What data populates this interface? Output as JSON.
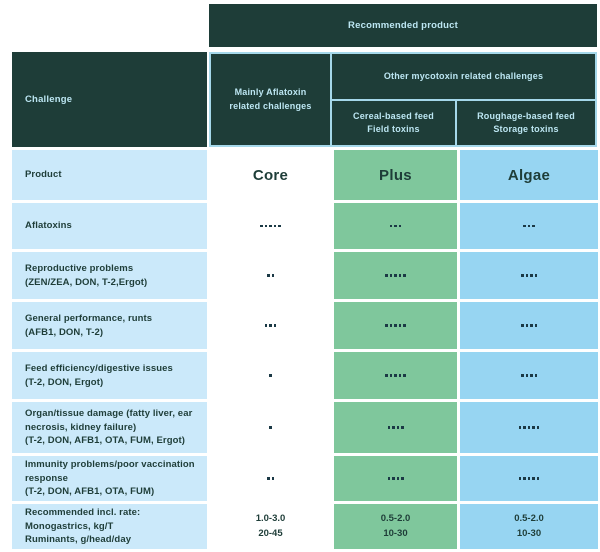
{
  "colors": {
    "header_bg": "#1E3D38",
    "header_text": "#BCE6F2",
    "label_column_bg": "#CBE9FA",
    "core_column_bg": "#FFFFFF",
    "plus_column_bg": "#7FC79C",
    "algae_column_bg": "#97D5F2",
    "header_grid_line": "#A5D8EA",
    "body_text": "#1E3D38",
    "dot_color": "#1B3945"
  },
  "header": {
    "recommended": "Recommended product",
    "challenge": "Challenge",
    "mainly": "Mainly Aflatoxin related challenges",
    "other": "Other mycotoxin related challenges",
    "cereal_line1": "Cereal-based feed",
    "cereal_line2": "Field toxins",
    "roughage_line1": "Roughage-based feed",
    "roughage_line2": "Storage toxins"
  },
  "product_row": {
    "label": "Product",
    "core": "Core",
    "plus": "Plus",
    "algae": "Algae"
  },
  "challenge_rows": [
    {
      "label": "Aflatoxins",
      "sub": "",
      "core": 5,
      "plus": 3,
      "algae": 3
    },
    {
      "label": "Reproductive problems",
      "sub": "(ZEN/ZEA, DON, T-2,Ergot)",
      "core": 2,
      "plus": 5,
      "algae": 4
    },
    {
      "label": "General performance, runts",
      "sub": "(AFB1, DON, T-2)",
      "core": 3,
      "plus": 5,
      "algae": 4
    },
    {
      "label": "Feed efficiency/digestive issues",
      "sub": "(T-2, DON, Ergot)",
      "core": 1,
      "plus": 5,
      "algae": 4
    },
    {
      "label": "Organ/tissue damage (fatty liver, ear necrosis, kidney failure)",
      "sub": "(T-2, DON, AFB1, OTA, FUM, Ergot)",
      "core": 1,
      "plus": 4,
      "algae": 5
    },
    {
      "label": "Immunity problems/poor vaccination response",
      "sub": "(T-2, DON, AFB1, OTA, FUM)",
      "core": 2,
      "plus": 4,
      "algae": 5
    }
  ],
  "rate_row": {
    "line1": "Recommended incl. rate:",
    "line2": "Monogastrics, kg/T",
    "line3": "Ruminants, g/head/day",
    "core1": "1.0-3.0",
    "core2": "20-45",
    "plus1": "0.5-2.0",
    "plus2": "10-30",
    "algae1": "0.5-2.0",
    "algae2": "10-30"
  },
  "chart_data": {
    "type": "table",
    "title": "Recommended product",
    "column_groups": {
      "Core": "Mainly Aflatoxin related challenges",
      "Plus": "Other mycotoxin related challenges - Cereal-based feed, Field toxins",
      "Algae": "Other mycotoxin related challenges - Roughage-based feed, Storage toxins"
    },
    "columns": [
      "Challenge",
      "Core",
      "Plus",
      "Algae"
    ],
    "rating_rows": [
      {
        "challenge": "Aflatoxins",
        "core_dots": 5,
        "plus_dots": 3,
        "algae_dots": 3
      },
      {
        "challenge": "Reproductive problems (ZEN/ZEA, DON, T-2,Ergot)",
        "core_dots": 2,
        "plus_dots": 5,
        "algae_dots": 4
      },
      {
        "challenge": "General performance, runts (AFB1, DON, T-2)",
        "core_dots": 3,
        "plus_dots": 5,
        "algae_dots": 4
      },
      {
        "challenge": "Feed efficiency/digestive issues (T-2, DON, Ergot)",
        "core_dots": 1,
        "plus_dots": 5,
        "algae_dots": 4
      },
      {
        "challenge": "Organ/tissue damage (fatty liver, ear necrosis, kidney failure) (T-2, DON, AFB1, OTA, FUM, Ergot)",
        "core_dots": 1,
        "plus_dots": 4,
        "algae_dots": 5
      },
      {
        "challenge": "Immunity problems/poor vaccination response (T-2, DON, AFB1, OTA, FUM)",
        "core_dots": 2,
        "plus_dots": 4,
        "algae_dots": 5
      }
    ],
    "inclusion_rate": {
      "label": "Recommended incl. rate: Monogastrics, kg/T; Ruminants, g/head/day",
      "core": [
        "1.0-3.0",
        "20-45"
      ],
      "plus": [
        "0.5-2.0",
        "10-30"
      ],
      "algae": [
        "0.5-2.0",
        "10-30"
      ]
    }
  }
}
